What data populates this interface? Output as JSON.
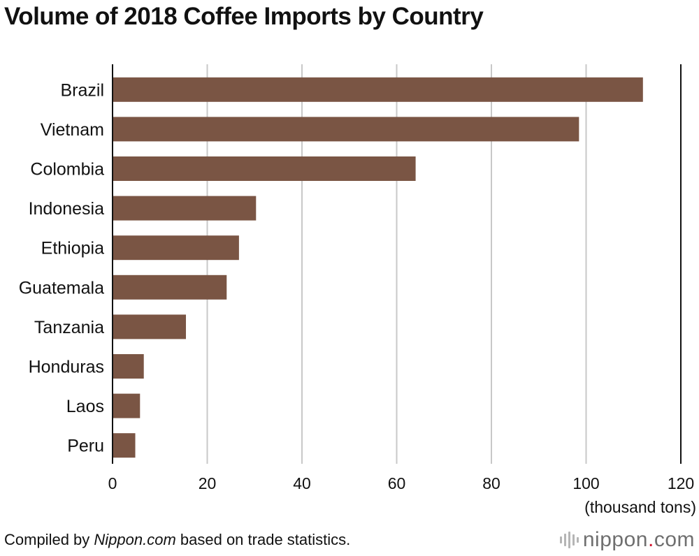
{
  "title": "Volume of 2018 Coffee Imports by Country",
  "footer": {
    "prefix": "Compiled by ",
    "source": "Nippon.com",
    "suffix": " based on trade statistics."
  },
  "brand": {
    "name": "nippon",
    "dot": ".",
    "tld": "com",
    "icon": "sound-wave-icon"
  },
  "colors": {
    "bar": "#7a5544",
    "grid": "#c8c8c8",
    "axis": "#111111"
  },
  "chart_data": {
    "type": "bar",
    "orientation": "horizontal",
    "title": "Volume of 2018 Coffee Imports by Country",
    "categories": [
      "Brazil",
      "Vietnam",
      "Colombia",
      "Indonesia",
      "Ethiopia",
      "Guatemala",
      "Tanzania",
      "Honduras",
      "Laos",
      "Peru"
    ],
    "values": [
      112,
      98.5,
      64,
      30.3,
      26.7,
      24.1,
      15.5,
      6.6,
      5.8,
      4.8
    ],
    "xlim": [
      0,
      120
    ],
    "xticks": [
      0,
      20,
      40,
      60,
      80,
      100,
      120
    ],
    "xlabel": "(thousand tons)",
    "ylabel": "",
    "grid": "vertical",
    "legend": "none"
  }
}
